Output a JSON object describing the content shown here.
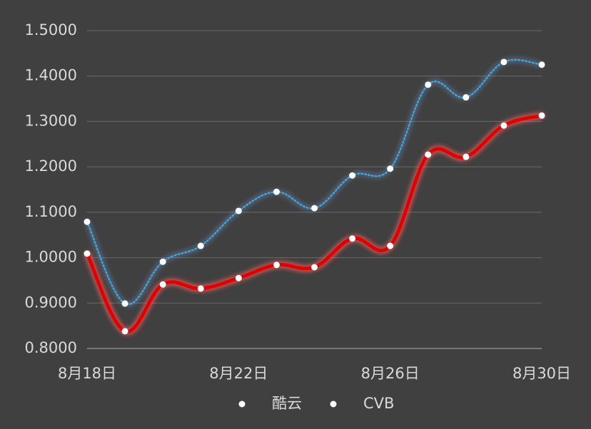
{
  "chart_data": {
    "type": "line",
    "categories": [
      "8月18日",
      null,
      null,
      null,
      "8月22日",
      null,
      null,
      null,
      "8月26日",
      null,
      null,
      null,
      "8月30日"
    ],
    "series": [
      {
        "name": "酷云",
        "color": "#3fa9e0",
        "style": "dotted",
        "values": [
          1.079,
          0.899,
          0.991,
          1.026,
          1.103,
          1.145,
          1.109,
          1.181,
          1.196,
          1.381,
          1.353,
          1.431,
          1.425
        ]
      },
      {
        "name": "CVB",
        "color": "#e00000",
        "style": "solid",
        "values": [
          1.009,
          0.838,
          0.941,
          0.932,
          0.955,
          0.984,
          0.979,
          1.042,
          1.026,
          1.227,
          1.222,
          1.291,
          1.313
        ]
      }
    ],
    "ylim": [
      0.8,
      1.5
    ],
    "yticks": [
      {
        "value": 0.8,
        "label": "0.8000"
      },
      {
        "value": 0.9,
        "label": "0.9000"
      },
      {
        "value": 1.0,
        "label": "1.0000"
      },
      {
        "value": 1.1,
        "label": "1.1000"
      },
      {
        "value": 1.2,
        "label": "1.2000"
      },
      {
        "value": 1.3,
        "label": "1.3000"
      },
      {
        "value": 1.4,
        "label": "1.4000"
      },
      {
        "value": 1.5,
        "label": "1.5000"
      }
    ],
    "grid": true,
    "legend": "bottom"
  }
}
